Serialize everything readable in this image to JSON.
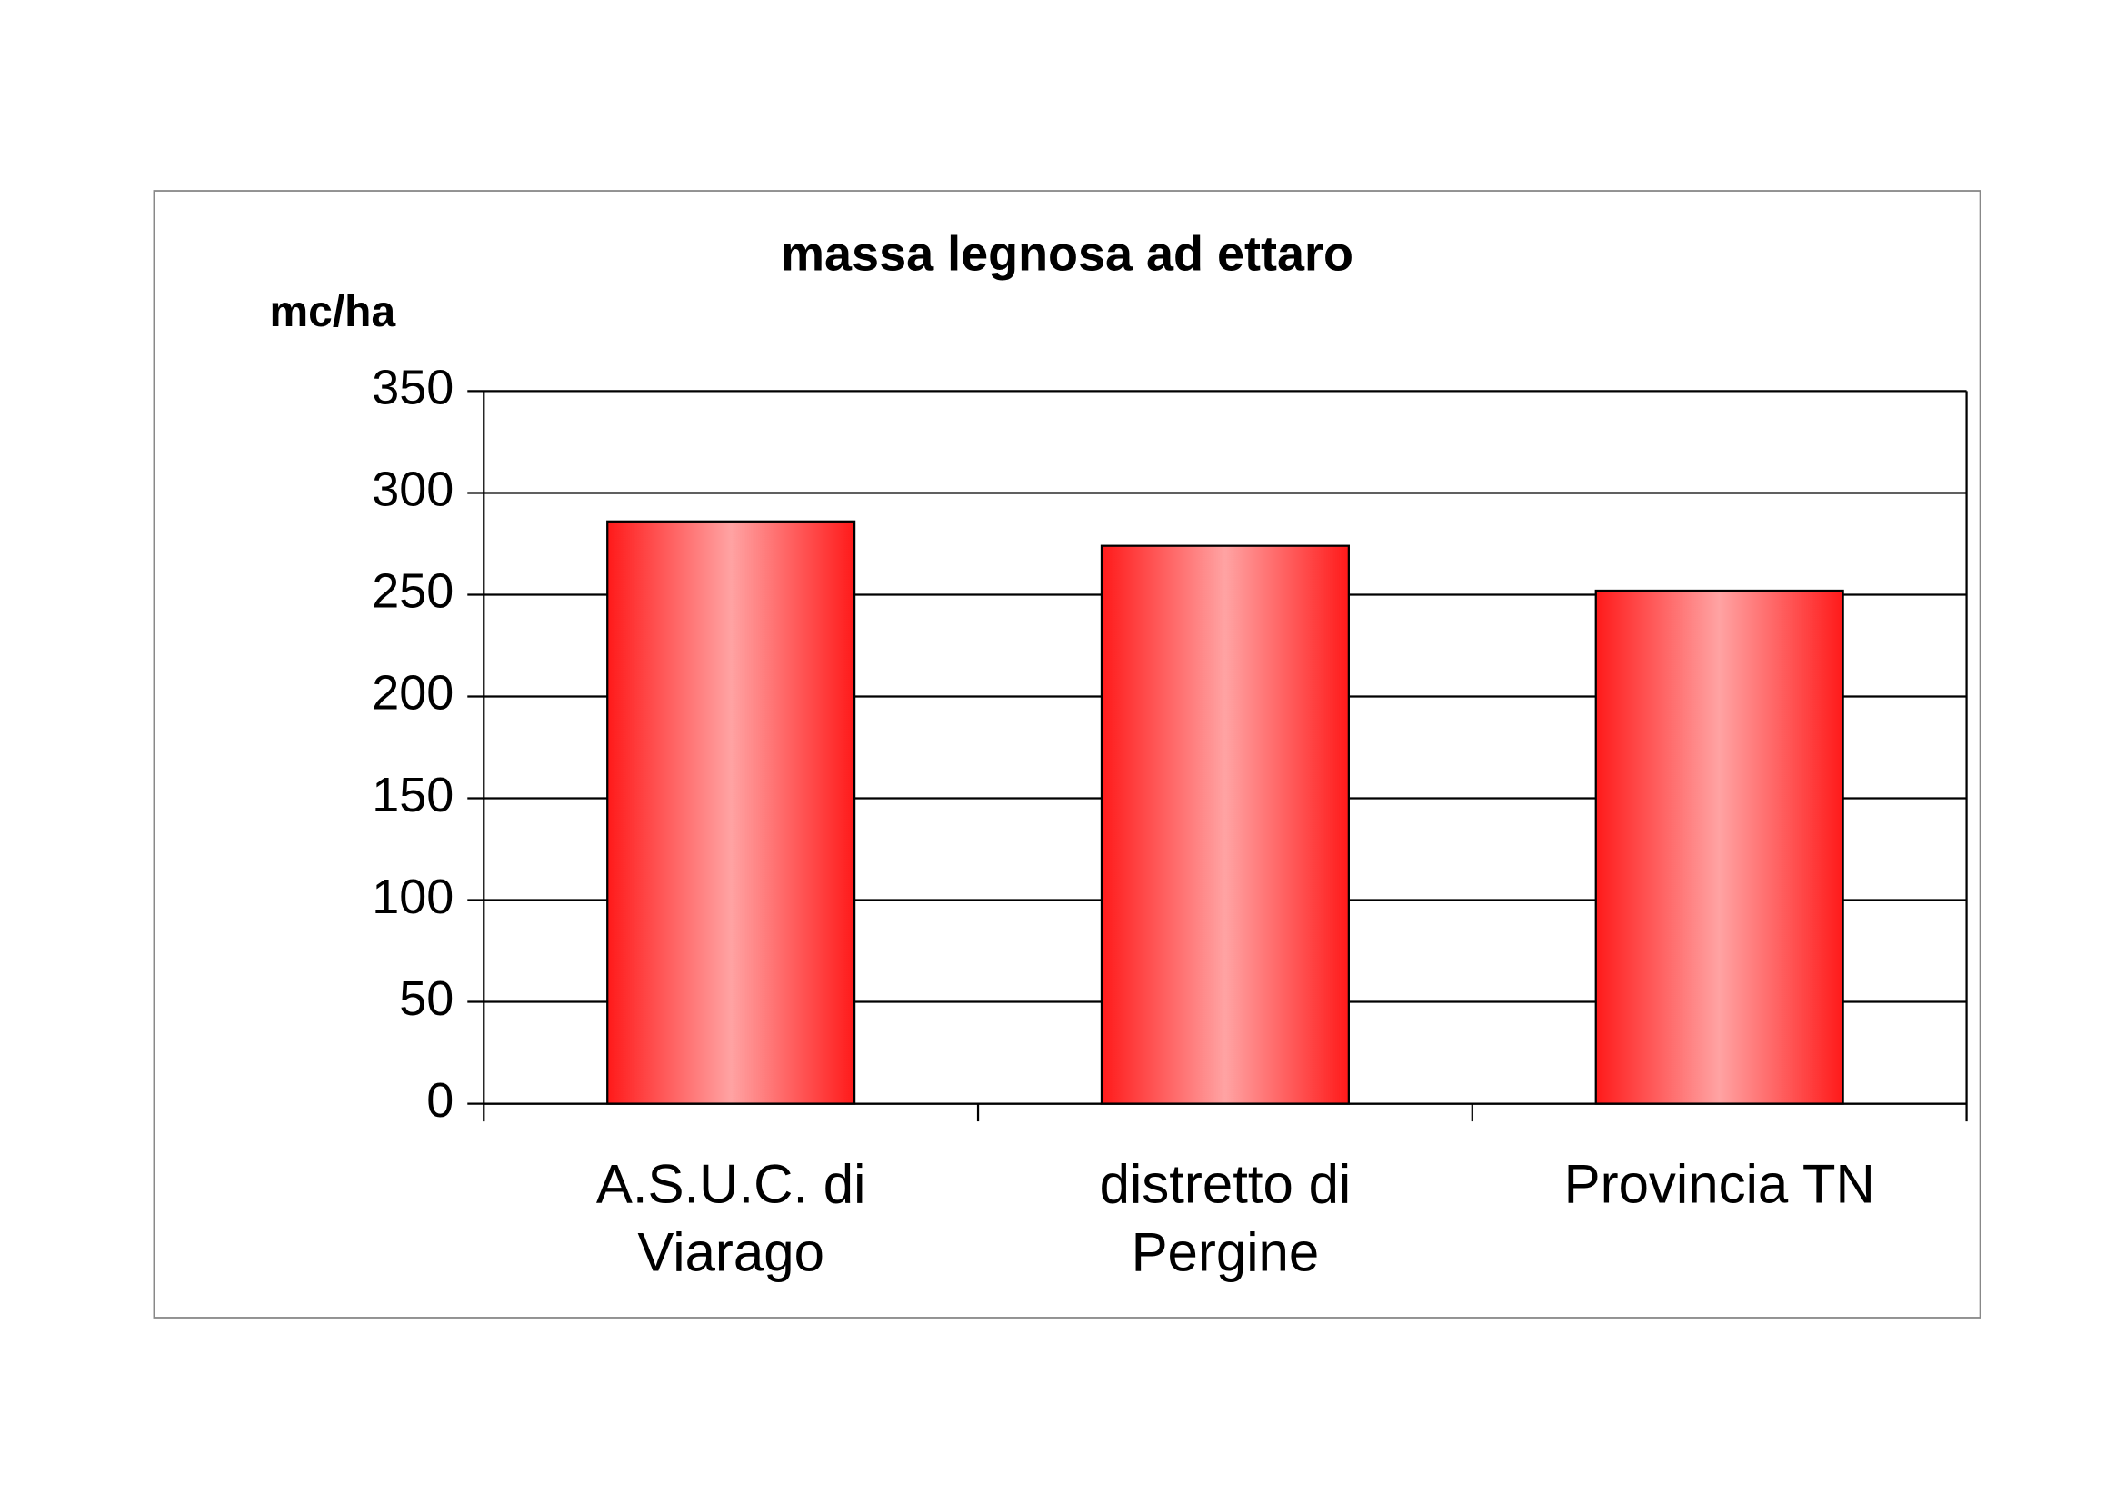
{
  "chart_data": {
    "type": "bar",
    "title": "massa legnosa ad ettaro",
    "y_label": "mc/ha",
    "categories": [
      "A.S.U.C. di Viarago",
      "distretto di Pergine",
      "Provincia TN"
    ],
    "values": [
      286,
      274,
      252
    ],
    "color": "#ff1a1a",
    "gradient": true,
    "ylim": [
      0,
      350
    ],
    "yticks": [
      0,
      50,
      100,
      150,
      200,
      250,
      300,
      350
    ],
    "grid": true
  }
}
